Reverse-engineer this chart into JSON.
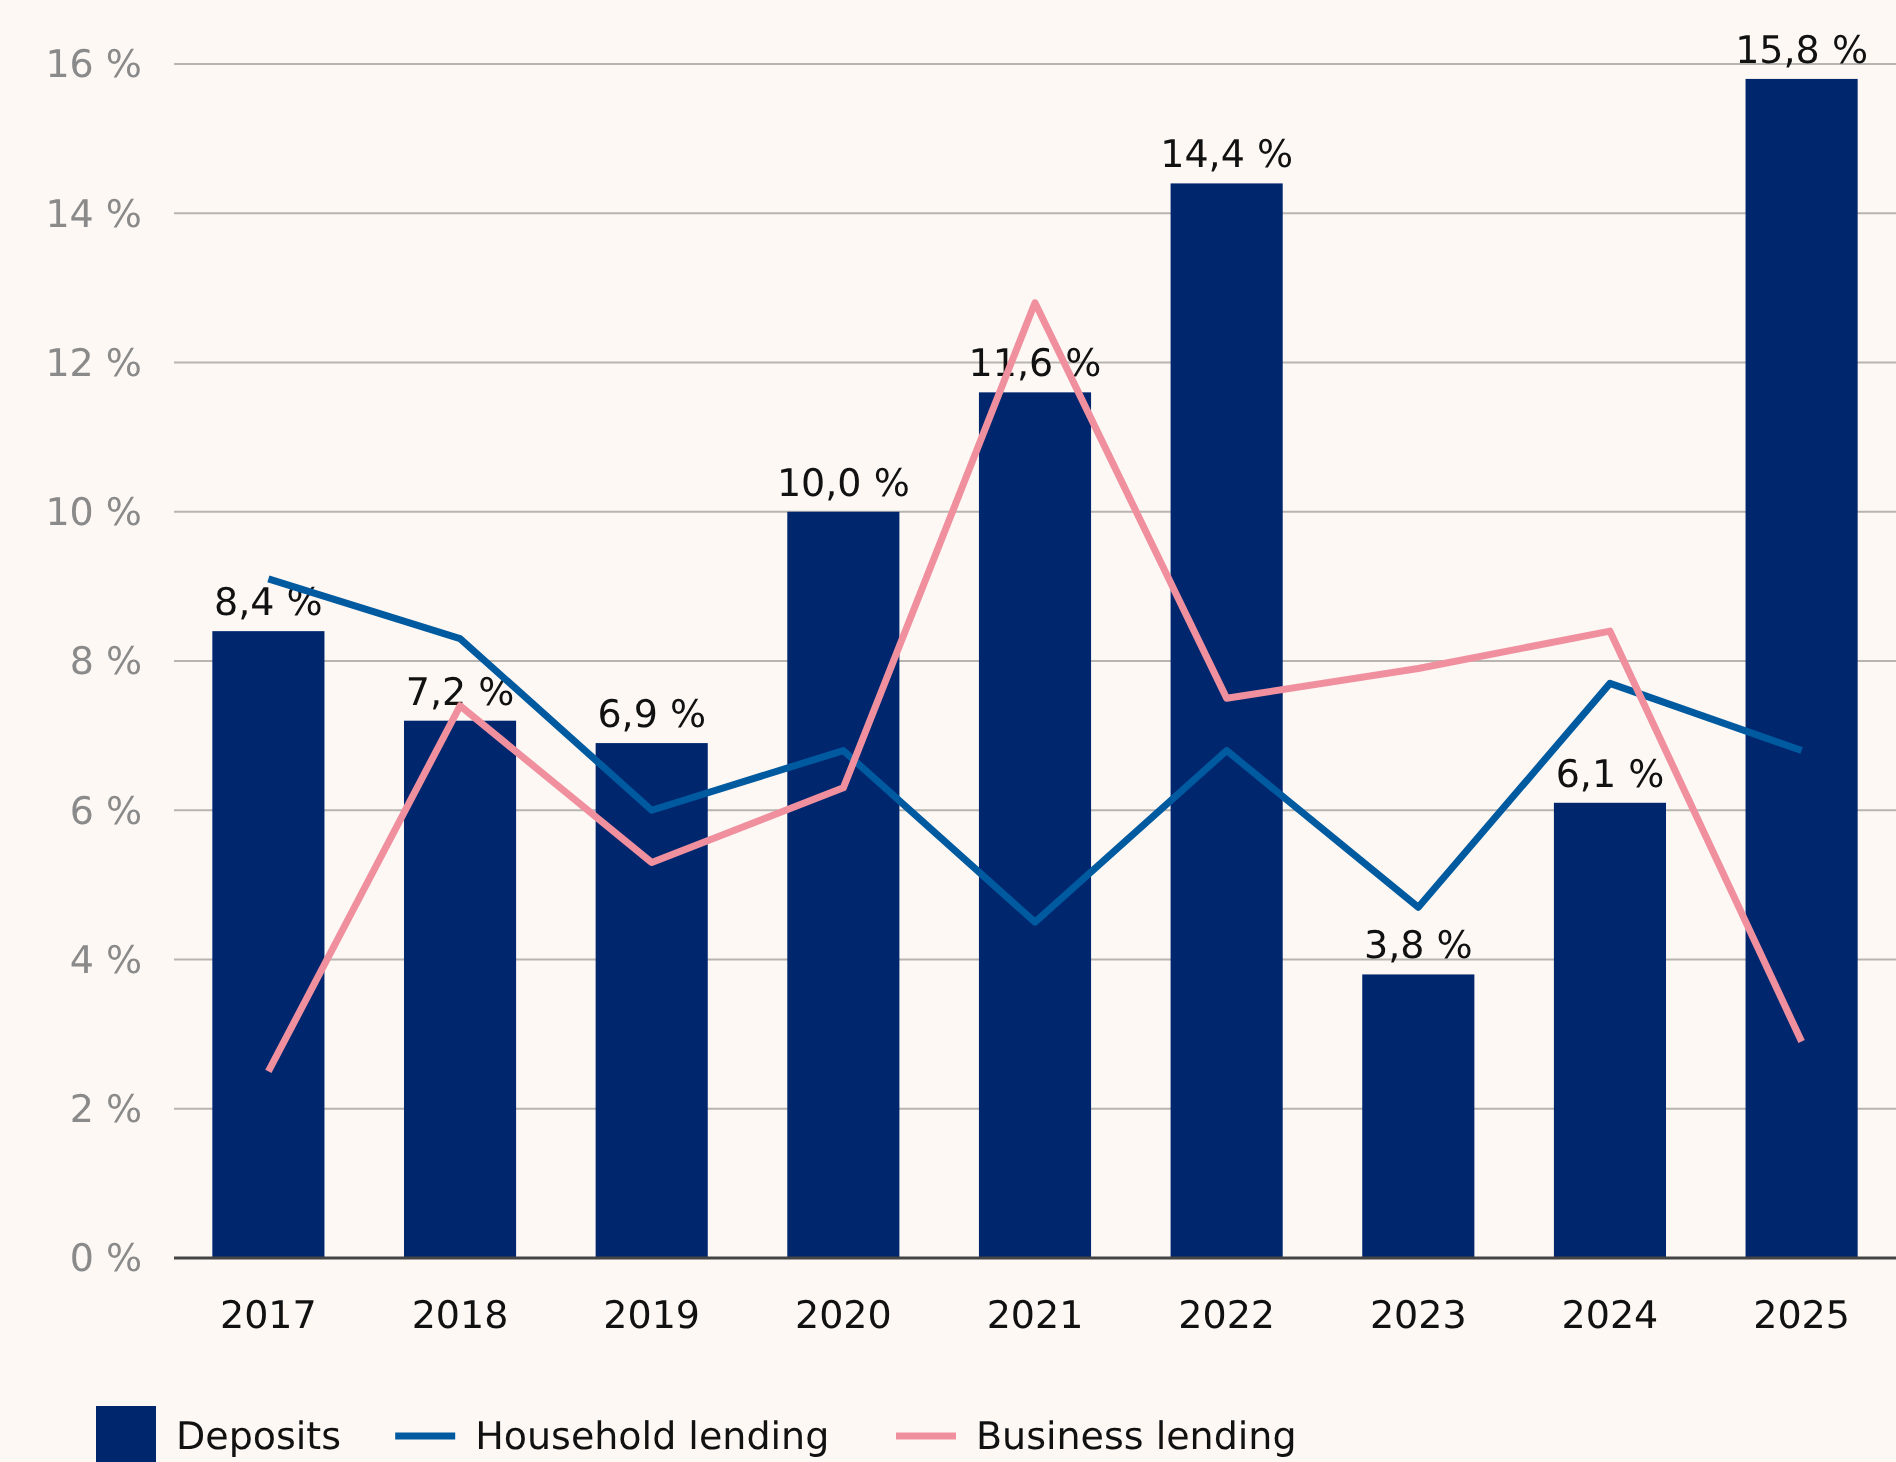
{
  "chart_data": {
    "type": "bar",
    "categories": [
      "2017",
      "2018",
      "2019",
      "2020",
      "2021",
      "2022",
      "2023",
      "2024",
      "2025"
    ],
    "series": [
      {
        "name": "Deposits",
        "color": "#00266e",
        "values": [
          8.4,
          7.2,
          6.9,
          10.0,
          11.6,
          14.4,
          3.8,
          6.1,
          15.8
        ],
        "value_labels": [
          "8,4 %",
          "7,2 %",
          "6,9 %",
          "10,0 %",
          "11,6 %",
          "14,4 %",
          "3,8 %",
          "6,1 %",
          "15,8 %"
        ]
      },
      {
        "name": "Household lending",
        "type": "line",
        "color": "#005aa0",
        "values": [
          9.1,
          8.3,
          6.0,
          6.8,
          4.5,
          6.8,
          4.7,
          7.7,
          6.8
        ]
      },
      {
        "name": "Business lending",
        "type": "line",
        "color": "#f0909e",
        "values": [
          2.5,
          7.4,
          5.3,
          6.3,
          12.8,
          7.5,
          7.9,
          8.4,
          2.9
        ]
      }
    ],
    "ylim": [
      0,
      16
    ],
    "yticks": [
      {
        "value": 0,
        "label": "0 %"
      },
      {
        "value": 2,
        "label": "2 %"
      },
      {
        "value": 4,
        "label": "4 %"
      },
      {
        "value": 6,
        "label": "6 %"
      },
      {
        "value": 8,
        "label": "8 %"
      },
      {
        "value": 10,
        "label": "10 %"
      },
      {
        "value": 12,
        "label": "12 %"
      },
      {
        "value": 14,
        "label": "14 %"
      },
      {
        "value": 16,
        "label": "16 %"
      }
    ],
    "grid": "y",
    "legend": "bottom",
    "marker": "none",
    "line_style": "solid"
  }
}
